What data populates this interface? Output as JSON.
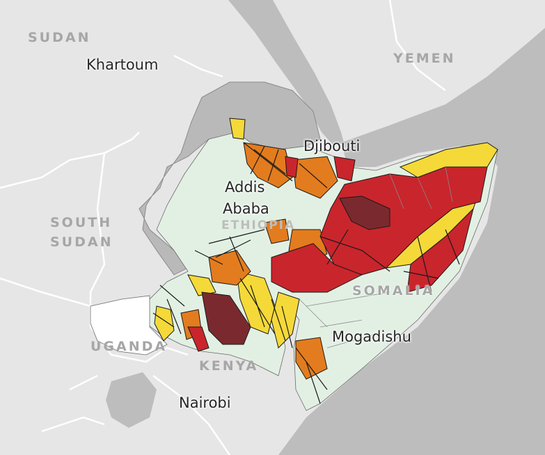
{
  "map": {
    "colors": {
      "water": "#bdbdbd",
      "land": "#e6e6e6",
      "outside_region": "#b9b9b9",
      "minimal": "#e2f0e3",
      "stressed": "#f5d939",
      "crisis": "#e37c1e",
      "emergency": "#c9252c",
      "famine": "#7a2a2e",
      "border": "#1a1a1a"
    },
    "labels": {
      "sudan": "SUDAN",
      "yemen": "YEMEN",
      "south_sudan_line1": "SOUTH",
      "south_sudan_line2": "SUDAN",
      "ethiopia": "ETHIOPIA",
      "somalia": "SOMALIA",
      "uganda": "UGANDA",
      "kenya": "KENYA",
      "khartoum": "Khartoum",
      "djibouti": "Djibouti",
      "addis_line1": "Addis",
      "addis_line2": "Ababa",
      "mogadishu": "Mogadishu",
      "nairobi": "Nairobi"
    }
  }
}
